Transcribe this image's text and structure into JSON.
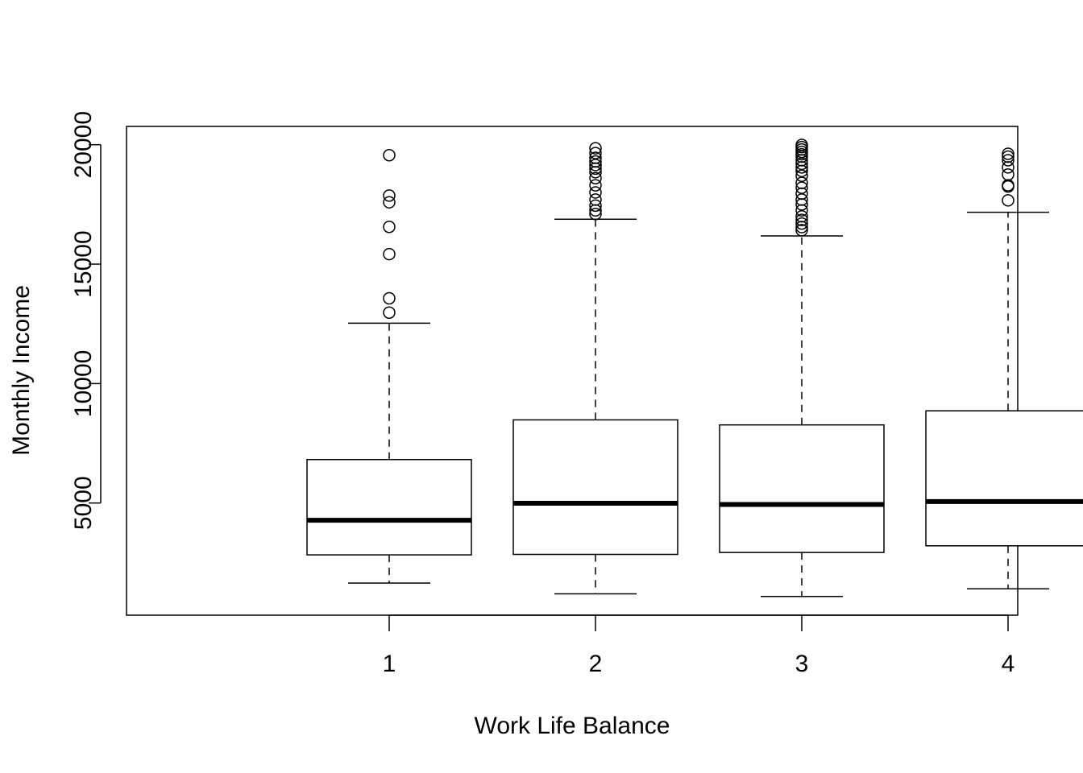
{
  "chart_data": {
    "type": "boxplot",
    "xlabel": "Work Life Balance",
    "ylabel": "Monthly Income",
    "categories": [
      "1",
      "2",
      "3",
      "4"
    ],
    "yticks": [
      5000,
      10000,
      15000,
      20000
    ],
    "ylim": [
      305,
      20765
    ],
    "grid": false,
    "legend": "none",
    "boxes": [
      {
        "category": "1",
        "whisker_low": 1650,
        "q1": 2830,
        "median": 4280,
        "q3": 6820,
        "whisker_high": 12530,
        "outliers": [
          19560,
          17870,
          17590,
          16560,
          15420,
          13570,
          12970
        ]
      },
      {
        "category": "2",
        "whisker_low": 1200,
        "q1": 2850,
        "median": 4990,
        "q3": 8480,
        "whisker_high": 16880,
        "outliers": [
          19850,
          19650,
          19450,
          19300,
          19150,
          19000,
          18850,
          18600,
          18300,
          18000,
          17700,
          17450,
          17250,
          17100
        ]
      },
      {
        "category": "3",
        "whisker_low": 1090,
        "q1": 2930,
        "median": 4940,
        "q3": 8270,
        "whisker_high": 16180,
        "outliers": [
          19990,
          19900,
          19800,
          19700,
          19600,
          19500,
          19350,
          19200,
          19050,
          18900,
          18700,
          18400,
          18200,
          17950,
          17700,
          17500,
          17250,
          17000,
          16850,
          16700,
          16550,
          16420
        ]
      },
      {
        "category": "4",
        "whisker_low": 1410,
        "q1": 3210,
        "median": 5060,
        "q3": 8860,
        "whisker_high": 17170,
        "outliers": [
          19620,
          19500,
          19350,
          19050,
          18750,
          18300,
          18250,
          17670
        ]
      }
    ]
  }
}
